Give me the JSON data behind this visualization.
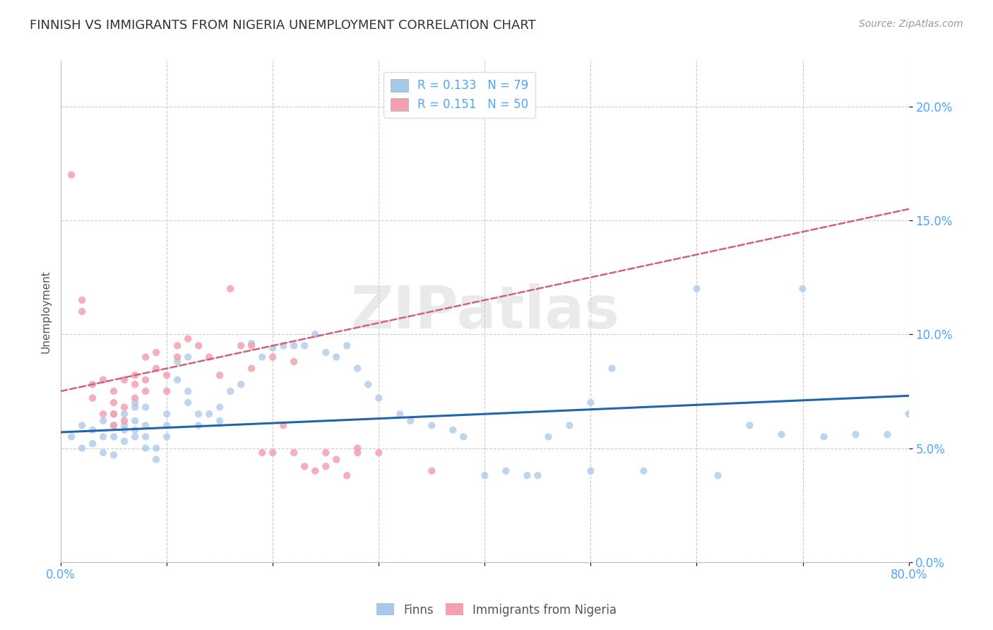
{
  "title": "FINNISH VS IMMIGRANTS FROM NIGERIA UNEMPLOYMENT CORRELATION CHART",
  "source": "Source: ZipAtlas.com",
  "ylabel": "Unemployment",
  "watermark": "ZIPatlas",
  "finns_color": "#a8c8e8",
  "nigeria_color": "#f4a0b0",
  "trend_finns_color": "#2166ac",
  "trend_nigeria_color": "#d46080",
  "axis_color": "#4da6ff",
  "grid_color": "#cccccc",
  "title_color": "#333333",
  "xlim": [
    0.0,
    0.8
  ],
  "ylim": [
    0.0,
    0.22
  ],
  "xticks": [
    0.0,
    0.1,
    0.2,
    0.3,
    0.4,
    0.5,
    0.6,
    0.7,
    0.8
  ],
  "yticks": [
    0.0,
    0.05,
    0.1,
    0.15,
    0.2
  ],
  "ytick_labels": [
    "0.0%",
    "5.0%",
    "10.0%",
    "15.0%",
    "20.0%"
  ],
  "xtick_labels": [
    "0.0%",
    "",
    "",
    "",
    "",
    "",
    "",
    "",
    "80.0%"
  ],
  "finns_trend_x": [
    0.0,
    0.8
  ],
  "finns_trend_y": [
    0.057,
    0.073
  ],
  "nigeria_trend_x": [
    0.0,
    0.8
  ],
  "nigeria_trend_y": [
    0.075,
    0.155
  ],
  "finns_x": [
    0.01,
    0.02,
    0.02,
    0.03,
    0.03,
    0.04,
    0.04,
    0.04,
    0.05,
    0.05,
    0.05,
    0.05,
    0.06,
    0.06,
    0.06,
    0.06,
    0.07,
    0.07,
    0.07,
    0.07,
    0.07,
    0.08,
    0.08,
    0.08,
    0.08,
    0.09,
    0.09,
    0.1,
    0.1,
    0.1,
    0.11,
    0.11,
    0.12,
    0.12,
    0.12,
    0.13,
    0.13,
    0.14,
    0.15,
    0.15,
    0.16,
    0.17,
    0.18,
    0.19,
    0.2,
    0.21,
    0.22,
    0.23,
    0.24,
    0.25,
    0.26,
    0.27,
    0.28,
    0.29,
    0.3,
    0.32,
    0.33,
    0.35,
    0.37,
    0.38,
    0.4,
    0.42,
    0.44,
    0.46,
    0.48,
    0.5,
    0.52,
    0.55,
    0.6,
    0.62,
    0.65,
    0.68,
    0.7,
    0.72,
    0.75,
    0.78,
    0.8,
    0.45,
    0.5
  ],
  "finns_y": [
    0.055,
    0.05,
    0.06,
    0.052,
    0.058,
    0.048,
    0.055,
    0.062,
    0.06,
    0.055,
    0.047,
    0.065,
    0.06,
    0.065,
    0.058,
    0.053,
    0.068,
    0.07,
    0.062,
    0.058,
    0.055,
    0.068,
    0.06,
    0.055,
    0.05,
    0.05,
    0.045,
    0.065,
    0.06,
    0.055,
    0.088,
    0.08,
    0.09,
    0.075,
    0.07,
    0.065,
    0.06,
    0.065,
    0.068,
    0.062,
    0.075,
    0.078,
    0.096,
    0.09,
    0.094,
    0.095,
    0.095,
    0.095,
    0.1,
    0.092,
    0.09,
    0.095,
    0.085,
    0.078,
    0.072,
    0.065,
    0.062,
    0.06,
    0.058,
    0.055,
    0.038,
    0.04,
    0.038,
    0.055,
    0.06,
    0.07,
    0.085,
    0.04,
    0.12,
    0.038,
    0.06,
    0.056,
    0.12,
    0.055,
    0.056,
    0.056,
    0.065,
    0.038,
    0.04
  ],
  "nigeria_x": [
    0.01,
    0.02,
    0.02,
    0.03,
    0.03,
    0.04,
    0.04,
    0.05,
    0.05,
    0.05,
    0.05,
    0.06,
    0.06,
    0.06,
    0.07,
    0.07,
    0.07,
    0.08,
    0.08,
    0.08,
    0.09,
    0.09,
    0.1,
    0.1,
    0.11,
    0.11,
    0.12,
    0.13,
    0.14,
    0.15,
    0.16,
    0.17,
    0.18,
    0.19,
    0.2,
    0.21,
    0.22,
    0.23,
    0.24,
    0.25,
    0.26,
    0.27,
    0.28,
    0.18,
    0.2,
    0.22,
    0.25,
    0.28,
    0.3,
    0.35
  ],
  "nigeria_y": [
    0.17,
    0.11,
    0.115,
    0.072,
    0.078,
    0.065,
    0.08,
    0.06,
    0.065,
    0.07,
    0.075,
    0.062,
    0.068,
    0.08,
    0.072,
    0.078,
    0.082,
    0.08,
    0.075,
    0.09,
    0.085,
    0.092,
    0.075,
    0.082,
    0.09,
    0.095,
    0.098,
    0.095,
    0.09,
    0.082,
    0.12,
    0.095,
    0.085,
    0.048,
    0.048,
    0.06,
    0.048,
    0.042,
    0.04,
    0.042,
    0.045,
    0.038,
    0.048,
    0.095,
    0.09,
    0.088,
    0.048,
    0.05,
    0.048,
    0.04
  ]
}
